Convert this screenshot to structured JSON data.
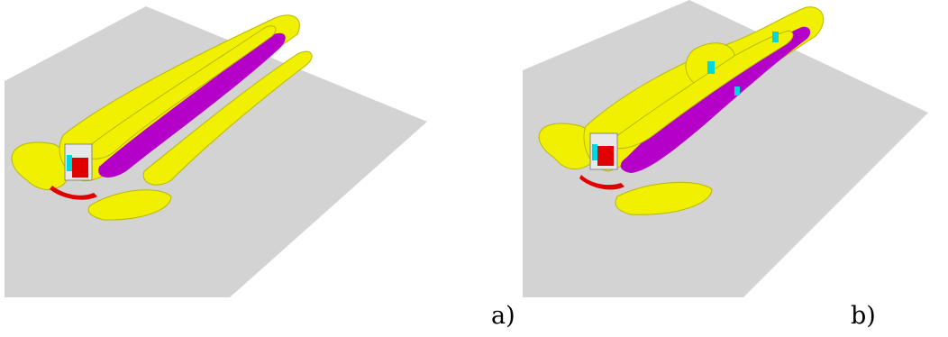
{
  "figure": {
    "panels": [
      {
        "id": "a",
        "label": "a)"
      },
      {
        "id": "b",
        "label": "b)"
      }
    ]
  },
  "colors": {
    "ground_plane": "#d3d3d3",
    "iso_surface_yellow": "#f0f000",
    "vortex_magenta": "#b400c8",
    "block_red": "#e00000",
    "accent_cyan": "#00d8e0",
    "edge_shadow": "#a8a800"
  }
}
